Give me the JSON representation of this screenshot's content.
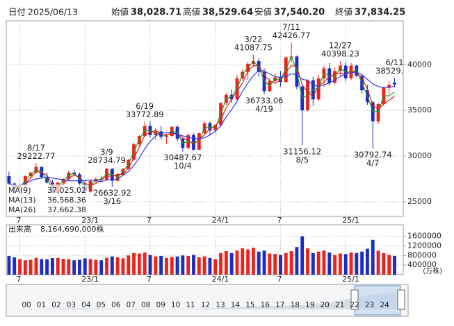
{
  "header": {
    "items": [
      {
        "label": "日付",
        "value": "2025/06/13"
      },
      {
        "label": "始値",
        "value": "38,028.71"
      },
      {
        "label": "高値",
        "value": "38,529.64"
      },
      {
        "label": "安値",
        "value": "37,540.20"
      },
      {
        "label": "終値",
        "value": "37,834.25"
      }
    ]
  },
  "chart_data": [
    {
      "type": "candlestick",
      "up_color": "#e8241c",
      "down_color": "#1c2cc4",
      "grid": true,
      "xlim": [
        -0.5,
        72.6
      ],
      "xticks": [
        {
          "value": 2,
          "label": "7"
        },
        {
          "value": 14,
          "label": "23/1"
        },
        {
          "value": 26,
          "label": "7"
        },
        {
          "value": 38,
          "label": "24/1"
        },
        {
          "value": 50,
          "label": "7"
        },
        {
          "value": 62,
          "label": "25/1"
        }
      ],
      "ylim": [
        23400,
        44800
      ],
      "yticks": [
        25000,
        30000,
        35000,
        40000
      ],
      "open": [
        27800,
        27000,
        26400,
        26800,
        27800,
        28200,
        28800,
        27700,
        27100,
        26000,
        27100,
        27500,
        28200,
        28000,
        27000,
        26100,
        27300,
        27500,
        27400,
        28600,
        27300,
        28000,
        28600,
        29600,
        31300,
        32200,
        33300,
        32300,
        32700,
        32100,
        32200,
        33200,
        31900,
        30900,
        32300,
        30700,
        32500,
        33600,
        32800,
        33400,
        35800,
        36700,
        36200,
        38500,
        39200,
        40100,
        40400,
        39200,
        37100,
        38200,
        38600,
        38100,
        40800,
        40900,
        37600,
        35000,
        38300,
        36200,
        38500,
        39600,
        38000,
        39300,
        39900,
        38500,
        39900,
        38800,
        37200,
        35900,
        33800,
        35700,
        37500,
        38028.71
      ],
      "high": [
        28300,
        27100,
        27000,
        27900,
        28300,
        29222.77,
        28900,
        28200,
        27400,
        27200,
        27600,
        28400,
        28500,
        28200,
        27200,
        27400,
        27700,
        27800,
        28734.79,
        28700,
        28100,
        28700,
        29700,
        31500,
        32300,
        33772.89,
        33800,
        33100,
        33300,
        32500,
        33300,
        33400,
        32000,
        32500,
        32500,
        32600,
        33800,
        33800,
        33500,
        35900,
        36900,
        37300,
        38900,
        39500,
        40300,
        41087.75,
        40700,
        39600,
        38500,
        39100,
        39300,
        40900,
        42426.77,
        41000,
        37900,
        38400,
        38700,
        38900,
        39900,
        40200,
        39700,
        40398.23,
        40300,
        40200,
        40000,
        39000,
        37800,
        36000,
        35800,
        37600,
        38200,
        38529.64
      ],
      "low": [
        26800,
        25900,
        26200,
        26600,
        27500,
        28100,
        27500,
        27000,
        25900,
        25700,
        26900,
        27300,
        27800,
        26700,
        25700,
        26000,
        27100,
        27200,
        27300,
        26632.92,
        27200,
        27800,
        28500,
        29500,
        31000,
        32100,
        32000,
        31800,
        31800,
        31300,
        32100,
        31600,
        30487.67,
        30700,
        30600,
        30600,
        32400,
        32300,
        32600,
        33200,
        35600,
        35800,
        36100,
        38300,
        38300,
        39800,
        38700,
        36733.06,
        37000,
        37900,
        37600,
        38000,
        40200,
        37300,
        31156.12,
        34900,
        35500,
        36000,
        37600,
        37700,
        37900,
        38800,
        38200,
        38300,
        38600,
        36800,
        35600,
        30792.74,
        33500,
        35500,
        36800,
        37540.2
      ],
      "close": [
        27000,
        26400,
        26800,
        27800,
        28200,
        28800,
        27700,
        27100,
        26000,
        27100,
        27500,
        28200,
        28000,
        27000,
        26100,
        27300,
        27500,
        27400,
        28600,
        27300,
        28000,
        28600,
        29600,
        31300,
        32200,
        33300,
        32300,
        32700,
        32100,
        32200,
        33200,
        31900,
        30900,
        32300,
        30700,
        32500,
        33600,
        32800,
        33400,
        35800,
        36700,
        36200,
        38500,
        39200,
        40100,
        40400,
        39200,
        37100,
        38200,
        38600,
        38100,
        40800,
        40900,
        37600,
        35000,
        38300,
        36200,
        38500,
        39600,
        38000,
        39300,
        39900,
        38500,
        39900,
        38800,
        37200,
        35900,
        33800,
        35700,
        37500,
        37800,
        37834.25
      ],
      "series": [
        {
          "name": "MA(9)",
          "legend_value": "37,025.02",
          "color": "#1f9a1f",
          "values": [
            27000,
            26700,
            26600,
            27300,
            28000,
            28500,
            28300,
            27400,
            26600,
            26600,
            27300,
            27900,
            28100,
            27500,
            26600,
            26700,
            27400,
            27500,
            28000,
            28000,
            27700,
            28300,
            29100,
            30500,
            31800,
            32800,
            32800,
            32500,
            32400,
            32200,
            32700,
            32600,
            31400,
            31600,
            31500,
            31600,
            33100,
            33200,
            33100,
            34600,
            36300,
            36500,
            37400,
            38900,
            39700,
            40300,
            39800,
            38200,
            37700,
            38400,
            38400,
            39500,
            40900,
            39300,
            36300,
            36700,
            37300,
            37400,
            39100,
            38800,
            38700,
            39600,
            39200,
            39200,
            39400,
            38000,
            36600,
            34900,
            34800,
            36600,
            36600,
            37025.02
          ]
        },
        {
          "name": "MA(13)",
          "legend_value": "36,568.36",
          "color": "#e0201c",
          "values": [
            27000,
            26700,
            26700,
            27000,
            27600,
            28300,
            28200,
            27900,
            26900,
            26700,
            26900,
            27600,
            27900,
            27700,
            27000,
            26800,
            27000,
            27400,
            27800,
            27800,
            28000,
            28000,
            28700,
            29800,
            31000,
            32300,
            32600,
            32800,
            32400,
            32300,
            32500,
            32400,
            32000,
            31700,
            31300,
            31800,
            32300,
            33000,
            33300,
            34000,
            35300,
            36200,
            37100,
            38000,
            39300,
            39900,
            39900,
            38900,
            38200,
            38000,
            38300,
            39200,
            39900,
            39800,
            37800,
            37000,
            36500,
            37700,
            38100,
            38700,
            39000,
            39100,
            38900,
            39400,
            39100,
            38600,
            37300,
            35600,
            35100,
            35700,
            36100,
            36568.36
          ]
        },
        {
          "name": "MA(26)",
          "legend_value": "37,662.38",
          "color": "#2a3ce0",
          "values": [
            27000,
            26800,
            26800,
            27000,
            27300,
            27500,
            27600,
            27700,
            27600,
            27500,
            27400,
            27300,
            27300,
            27300,
            27300,
            27400,
            27300,
            27200,
            27400,
            27400,
            27500,
            27900,
            28300,
            29000,
            29800,
            30800,
            31600,
            32200,
            32500,
            32600,
            32600,
            32400,
            32200,
            32100,
            31900,
            31900,
            32000,
            32300,
            32700,
            33300,
            34300,
            35100,
            36000,
            37100,
            38000,
            38800,
            39400,
            39300,
            39000,
            38700,
            38600,
            38700,
            39000,
            38900,
            38400,
            38300,
            37800,
            37600,
            37800,
            38000,
            38300,
            38700,
            39000,
            39100,
            39200,
            38900,
            38400,
            37900,
            37600,
            37500,
            37500,
            37662.38
          ]
        }
      ],
      "annotations": [
        {
          "date": "8/17",
          "value": 29222.77
        },
        {
          "date": "3/9",
          "value": 28734.79
        },
        {
          "date": "3/16",
          "value": 26632.92
        },
        {
          "date": "6/19",
          "value": 33772.89
        },
        {
          "date": "10/4",
          "value": 30487.67
        },
        {
          "date": "3/22",
          "value": 41087.75
        },
        {
          "date": "4/19",
          "value": 36733.06
        },
        {
          "date": "7/11",
          "value": 42426.77
        },
        {
          "date": "8/5",
          "value": 31156.12
        },
        {
          "date": "12/27",
          "value": 40398.23
        },
        {
          "date": "4/7",
          "value": 30792.74
        },
        {
          "date": "6/11",
          "value": 38529.64
        }
      ]
    },
    {
      "type": "bar",
      "title": "出来高",
      "total": "8,164,690,000株",
      "unit": "(万株)",
      "xlim": [
        -0.5,
        72.6
      ],
      "xticks": [
        {
          "value": 2,
          "label": "7"
        },
        {
          "value": 14,
          "label": "23/1"
        },
        {
          "value": 26,
          "label": "7"
        },
        {
          "value": 38,
          "label": "24/1"
        },
        {
          "value": 50,
          "label": "7"
        },
        {
          "value": 62,
          "label": "25/1"
        }
      ],
      "ylim": [
        0,
        2050000
      ],
      "yticks": [
        400000,
        800000,
        1200000,
        1600000
      ],
      "values": [
        780000,
        720000,
        650000,
        600000,
        620000,
        700000,
        650000,
        640000,
        690000,
        700000,
        660000,
        640000,
        600000,
        620000,
        680000,
        650000,
        620000,
        600000,
        700000,
        760000,
        720000,
        680000,
        800000,
        900000,
        880000,
        920000,
        820000,
        760000,
        780000,
        700000,
        740000,
        760000,
        800000,
        780000,
        820000,
        720000,
        760000,
        700000,
        640000,
        900000,
        980000,
        900000,
        1000000,
        1100000,
        1050000,
        1120000,
        960000,
        1000000,
        880000,
        860000,
        820000,
        900000,
        980000,
        1150000,
        1600000,
        1100000,
        900000,
        960000,
        1000000,
        920000,
        820000,
        880000,
        860000,
        920000,
        900000,
        960000,
        1080000,
        1450000,
        1000000,
        900000,
        820000,
        780000
      ]
    }
  ],
  "navigator": {
    "years": [
      "00",
      "01",
      "02",
      "03",
      "04",
      "05",
      "06",
      "07",
      "08",
      "09",
      "10",
      "11",
      "12",
      "13",
      "14",
      "15",
      "16",
      "17",
      "18",
      "19",
      "20",
      "21",
      "22",
      "23",
      "24"
    ]
  }
}
